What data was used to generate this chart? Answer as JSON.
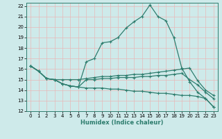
{
  "title": "",
  "xlabel": "Humidex (Indice chaleur)",
  "ylabel": "",
  "background_color": "#ceeaea",
  "line_color": "#2e7d6e",
  "grid_color": "#b8d8d8",
  "xlim": [
    -0.5,
    23.5
  ],
  "ylim": [
    12,
    22.3
  ],
  "xticks": [
    0,
    1,
    2,
    3,
    4,
    5,
    6,
    7,
    8,
    9,
    10,
    11,
    12,
    13,
    14,
    15,
    16,
    17,
    18,
    19,
    20,
    21,
    22,
    23
  ],
  "yticks": [
    12,
    13,
    14,
    15,
    16,
    17,
    18,
    19,
    20,
    21,
    22
  ],
  "lines": [
    {
      "x": [
        0,
        1,
        2,
        3,
        4,
        5,
        6,
        7,
        8,
        9,
        10,
        11,
        12,
        13,
        14,
        15,
        16,
        17,
        18,
        19,
        20,
        21,
        22,
        23
      ],
      "y": [
        16.3,
        15.8,
        15.1,
        15.0,
        14.6,
        14.4,
        14.3,
        16.7,
        17.0,
        18.5,
        18.6,
        19.0,
        19.9,
        20.5,
        21.0,
        22.1,
        21.0,
        20.6,
        19.0,
        16.1,
        14.8,
        13.8,
        13.2,
        12.4
      ]
    },
    {
      "x": [
        0,
        1,
        2,
        3,
        4,
        5,
        6,
        7,
        8,
        9,
        10,
        11,
        12,
        13,
        14,
        15,
        16,
        17,
        18,
        19,
        20,
        21,
        22,
        23
      ],
      "y": [
        16.3,
        15.8,
        15.1,
        15.0,
        15.0,
        15.0,
        15.0,
        15.1,
        15.2,
        15.3,
        15.3,
        15.4,
        15.4,
        15.5,
        15.5,
        15.6,
        15.7,
        15.8,
        15.9,
        16.0,
        16.1,
        14.9,
        14.0,
        13.5
      ]
    },
    {
      "x": [
        0,
        1,
        2,
        3,
        4,
        5,
        6,
        7,
        8,
        9,
        10,
        11,
        12,
        13,
        14,
        15,
        16,
        17,
        18,
        19,
        20,
        21,
        22,
        23
      ],
      "y": [
        16.3,
        15.8,
        15.1,
        15.0,
        14.6,
        14.4,
        14.3,
        15.0,
        15.0,
        15.1,
        15.1,
        15.2,
        15.2,
        15.2,
        15.3,
        15.3,
        15.4,
        15.4,
        15.5,
        15.6,
        15.0,
        14.5,
        13.8,
        13.2
      ]
    },
    {
      "x": [
        0,
        1,
        2,
        3,
        4,
        5,
        6,
        7,
        8,
        9,
        10,
        11,
        12,
        13,
        14,
        15,
        16,
        17,
        18,
        19,
        20,
        21,
        22,
        23
      ],
      "y": [
        16.3,
        15.8,
        15.1,
        15.0,
        14.6,
        14.4,
        14.3,
        14.2,
        14.2,
        14.2,
        14.1,
        14.1,
        14.0,
        13.9,
        13.9,
        13.8,
        13.7,
        13.7,
        13.6,
        13.5,
        13.5,
        13.4,
        13.2,
        12.4
      ]
    }
  ]
}
